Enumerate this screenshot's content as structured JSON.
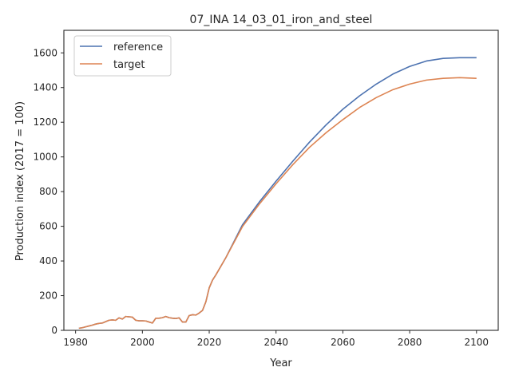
{
  "chart_data": {
    "type": "line",
    "title": "07_INA 14_03_01_iron_and_steel",
    "xlabel": "Year",
    "ylabel": "Production index (2017 = 100)",
    "xlim": [
      1976.5,
      2106.5
    ],
    "ylim": [
      0,
      1730
    ],
    "xticks": [
      1980,
      2000,
      2020,
      2040,
      2060,
      2080,
      2100
    ],
    "yticks": [
      0,
      200,
      400,
      600,
      800,
      1000,
      1200,
      1400,
      1600
    ],
    "grid": false,
    "legend_position": "top-left",
    "colors": {
      "reference": "#4c72b0",
      "target": "#dd8452"
    },
    "series": [
      {
        "name": "reference",
        "color": "#4c72b0",
        "x": [
          1981,
          1982,
          1983,
          1984,
          1985,
          1986,
          1987,
          1988,
          1989,
          1990,
          1991,
          1992,
          1993,
          1994,
          1995,
          1996,
          1997,
          1998,
          1999,
          2000,
          2001,
          2002,
          2003,
          2004,
          2005,
          2006,
          2007,
          2008,
          2009,
          2010,
          2011,
          2012,
          2013,
          2014,
          2015,
          2016,
          2017,
          2018,
          2019,
          2020,
          2021,
          2022,
          2025,
          2030,
          2035,
          2040,
          2045,
          2050,
          2055,
          2060,
          2065,
          2070,
          2075,
          2080,
          2085,
          2090,
          2095,
          2100
        ],
        "y": [
          12,
          15,
          20,
          25,
          30,
          36,
          40,
          42,
          50,
          58,
          60,
          58,
          72,
          65,
          80,
          78,
          76,
          58,
          55,
          55,
          54,
          48,
          42,
          70,
          70,
          73,
          80,
          73,
          70,
          68,
          72,
          48,
          48,
          85,
          90,
          88,
          100,
          115,
          165,
          245,
          290,
          320,
          420,
          610,
          740,
          860,
          975,
          1085,
          1185,
          1275,
          1352,
          1420,
          1478,
          1522,
          1553,
          1568,
          1572,
          1572
        ]
      },
      {
        "name": "target",
        "color": "#dd8452",
        "x": [
          1981,
          1982,
          1983,
          1984,
          1985,
          1986,
          1987,
          1988,
          1989,
          1990,
          1991,
          1992,
          1993,
          1994,
          1995,
          1996,
          1997,
          1998,
          1999,
          2000,
          2001,
          2002,
          2003,
          2004,
          2005,
          2006,
          2007,
          2008,
          2009,
          2010,
          2011,
          2012,
          2013,
          2014,
          2015,
          2016,
          2017,
          2018,
          2019,
          2020,
          2021,
          2022,
          2025,
          2030,
          2035,
          2040,
          2045,
          2050,
          2055,
          2060,
          2065,
          2070,
          2075,
          2080,
          2085,
          2090,
          2095,
          2100
        ],
        "y": [
          12,
          15,
          20,
          25,
          30,
          36,
          40,
          42,
          50,
          58,
          60,
          58,
          72,
          65,
          80,
          78,
          76,
          58,
          55,
          55,
          54,
          48,
          42,
          70,
          70,
          73,
          80,
          73,
          70,
          68,
          72,
          48,
          48,
          85,
          90,
          88,
          100,
          115,
          165,
          245,
          290,
          320,
          420,
          600,
          728,
          845,
          955,
          1055,
          1140,
          1215,
          1285,
          1342,
          1388,
          1420,
          1443,
          1453,
          1457,
          1453
        ]
      }
    ]
  }
}
